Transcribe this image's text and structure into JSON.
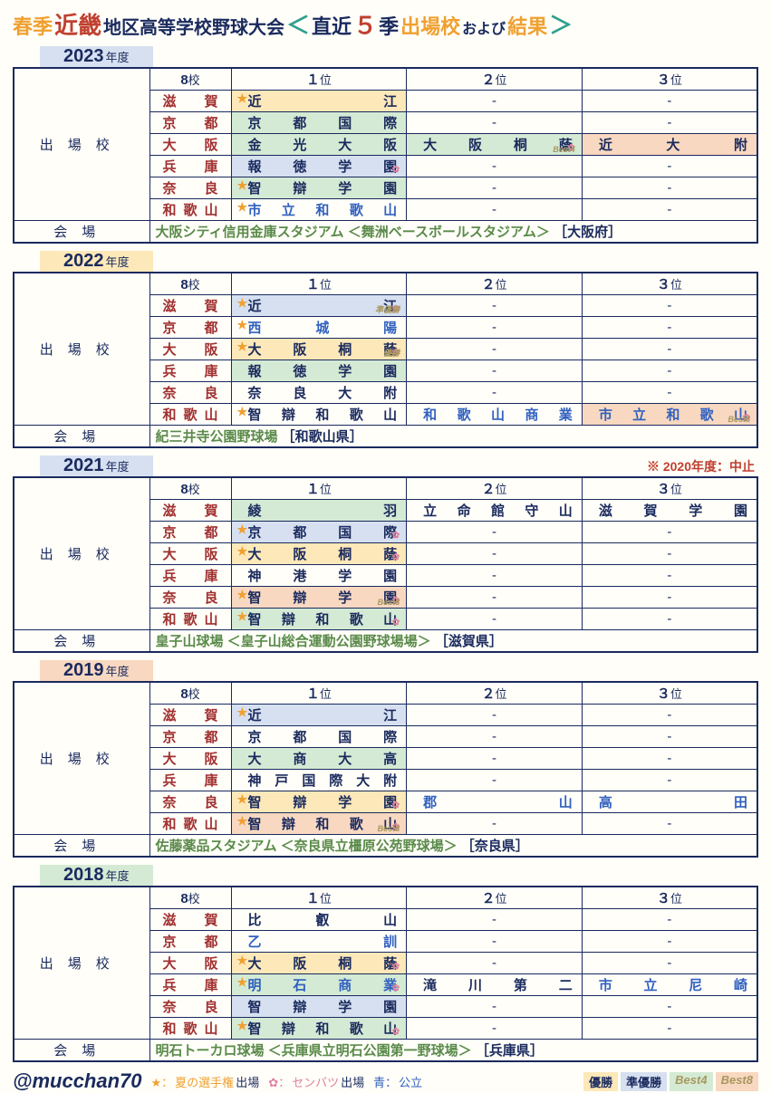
{
  "title": {
    "a": "春季",
    "b": "近畿",
    "c": "地区高等学校野球大会",
    "lt": "＜",
    "d": "直近",
    "e": "５",
    "f": "季",
    "g": "出場校",
    "h": "および",
    "i": "結果",
    "gt": "＞"
  },
  "labels": {
    "schools": "出場校",
    "venue": "会場",
    "count_num": "8",
    "count_suf": "校",
    "rank_suf": "位",
    "r1": "１",
    "r2": "２",
    "r3": "３",
    "dash": "-",
    "year_suffix": "年度"
  },
  "prefectures": [
    "滋賀",
    "京都",
    "大阪",
    "兵庫",
    "奈良",
    "和歌山"
  ],
  "years": [
    {
      "year": "2023",
      "tab_color": "blue",
      "rows": [
        {
          "c1": {
            "t": "近江",
            "star": true,
            "bg": "bg-yellow"
          }
        },
        {
          "c1": {
            "t": "京都国際",
            "bg": "bg-green"
          }
        },
        {
          "c1": {
            "t": "金光大阪",
            "bg": "bg-green"
          },
          "c2": {
            "t": "大阪桐蔭",
            "flower": true,
            "badge": "Best4",
            "bg": "bg-green"
          },
          "c3": {
            "t": "近大附",
            "bg": "bg-orange"
          }
        },
        {
          "c1": {
            "t": "報徳学園",
            "flower": true,
            "bg": "bg-blue"
          }
        },
        {
          "c1": {
            "t": "智辯学園",
            "star": true,
            "bg": "bg-green"
          }
        },
        {
          "c1": {
            "t": "市立和歌山",
            "star": true,
            "blue": true
          }
        }
      ],
      "venue": {
        "main": "大阪シティ信用金庫スタジアム",
        "sub": "＜舞洲ベースボールスタジアム＞",
        "loc": "［大阪府］"
      }
    },
    {
      "year": "2022",
      "tab_color": "yellow",
      "rows": [
        {
          "c1": {
            "t": "近江",
            "star": true,
            "flower": true,
            "badge": "準優勝",
            "bg": "bg-blue"
          }
        },
        {
          "c1": {
            "t": "西城陽",
            "star": true,
            "blue": true
          }
        },
        {
          "c1": {
            "t": "大阪桐蔭",
            "star": true,
            "flower": true,
            "badge": "優勝",
            "bg": "bg-yellow"
          }
        },
        {
          "c1": {
            "t": "報徳学園",
            "bg": "bg-green"
          }
        },
        {
          "c1": {
            "t": "奈良大附"
          }
        },
        {
          "c1": {
            "t": "智辯和歌山",
            "star": true
          },
          "c2": {
            "t": "和歌山商業",
            "blue": true
          },
          "c3": {
            "t": "市立和歌山",
            "blue": true,
            "flower": true,
            "badge": "Best8",
            "bg": "bg-orange"
          }
        }
      ],
      "venue": {
        "main": "紀三井寺公園野球場",
        "sub": "",
        "loc": "［和歌山県］"
      }
    },
    {
      "year": "2021",
      "tab_color": "blue",
      "note": "※ 2020年度：中止",
      "rows": [
        {
          "c1": {
            "t": "綾羽",
            "bg": "bg-green"
          },
          "c2": {
            "t": "立命館守山"
          },
          "c3": {
            "t": "滋賀学園"
          }
        },
        {
          "c1": {
            "t": "京都国際",
            "star": true,
            "flower": true,
            "bg": "bg-blue"
          }
        },
        {
          "c1": {
            "t": "大阪桐蔭",
            "star": true,
            "flower": true,
            "bg": "bg-yellow"
          }
        },
        {
          "c1": {
            "t": "神港学園"
          }
        },
        {
          "c1": {
            "t": "智辯学園",
            "star": true,
            "flower": true,
            "badge": "Best8",
            "bg": "bg-orange"
          }
        },
        {
          "c1": {
            "t": "智辯和歌山",
            "star": true,
            "flower": true,
            "bg": "bg-green"
          }
        }
      ],
      "venue": {
        "main": "皇子山球場",
        "sub": "＜皇子山総合運動公園野球場場＞",
        "loc": "［滋賀県］"
      }
    },
    {
      "year": "2019",
      "tab_color": "orange",
      "rows": [
        {
          "c1": {
            "t": "近江",
            "star": true,
            "bg": "bg-blue"
          }
        },
        {
          "c1": {
            "t": "京都国際"
          }
        },
        {
          "c1": {
            "t": "大商大高",
            "bg": "bg-green"
          }
        },
        {
          "c1": {
            "t": "神戸国際大附"
          }
        },
        {
          "c1": {
            "t": "智辯学園",
            "star": true,
            "flower": true,
            "bg": "bg-yellow"
          },
          "c2": {
            "t": "郡山",
            "blue": true
          },
          "c3": {
            "t": "高田",
            "blue": true
          }
        },
        {
          "c1": {
            "t": "智辯和歌山",
            "star": true,
            "flower": true,
            "badge": "Best8",
            "bg": "bg-orange"
          }
        }
      ],
      "venue": {
        "main": "佐藤薬品スタジアム",
        "sub": "＜奈良県立橿原公苑野球場＞",
        "loc": "［奈良県］"
      }
    },
    {
      "year": "2018",
      "tab_color": "green",
      "rows": [
        {
          "c1": {
            "t": "比叡山"
          }
        },
        {
          "c1": {
            "t": "乙訓",
            "blue": true
          }
        },
        {
          "c1": {
            "t": "大阪桐蔭",
            "star": true,
            "flower": true,
            "bg": "bg-yellow"
          }
        },
        {
          "c1": {
            "t": "明石商業",
            "star": true,
            "flower": true,
            "blue": true,
            "bg": "bg-green"
          },
          "c2": {
            "t": "滝川第二"
          },
          "c3": {
            "t": "市立尼崎",
            "blue": true
          }
        },
        {
          "c1": {
            "t": "智辯学園",
            "bg": "bg-blue"
          }
        },
        {
          "c1": {
            "t": "智辯和歌山",
            "star": true,
            "flower": true,
            "bg": "bg-green"
          }
        }
      ],
      "venue": {
        "main": "明石トーカロ球場",
        "sub": "＜兵庫県立明石公園第一野球場＞",
        "loc": "［兵庫県］"
      }
    }
  ],
  "footer": {
    "handle": "@mucchan70",
    "star": "★：",
    "star_txt": "夏の選手権",
    "star_suf": "出場",
    "flower": "✿：",
    "flower_txt": "センバツ",
    "flower_suf": "出場",
    "blue_lbl": "青：",
    "blue_txt": "公立",
    "b1": "優勝",
    "b2": "準優勝",
    "b3": "Best4",
    "b4": "Best8"
  }
}
